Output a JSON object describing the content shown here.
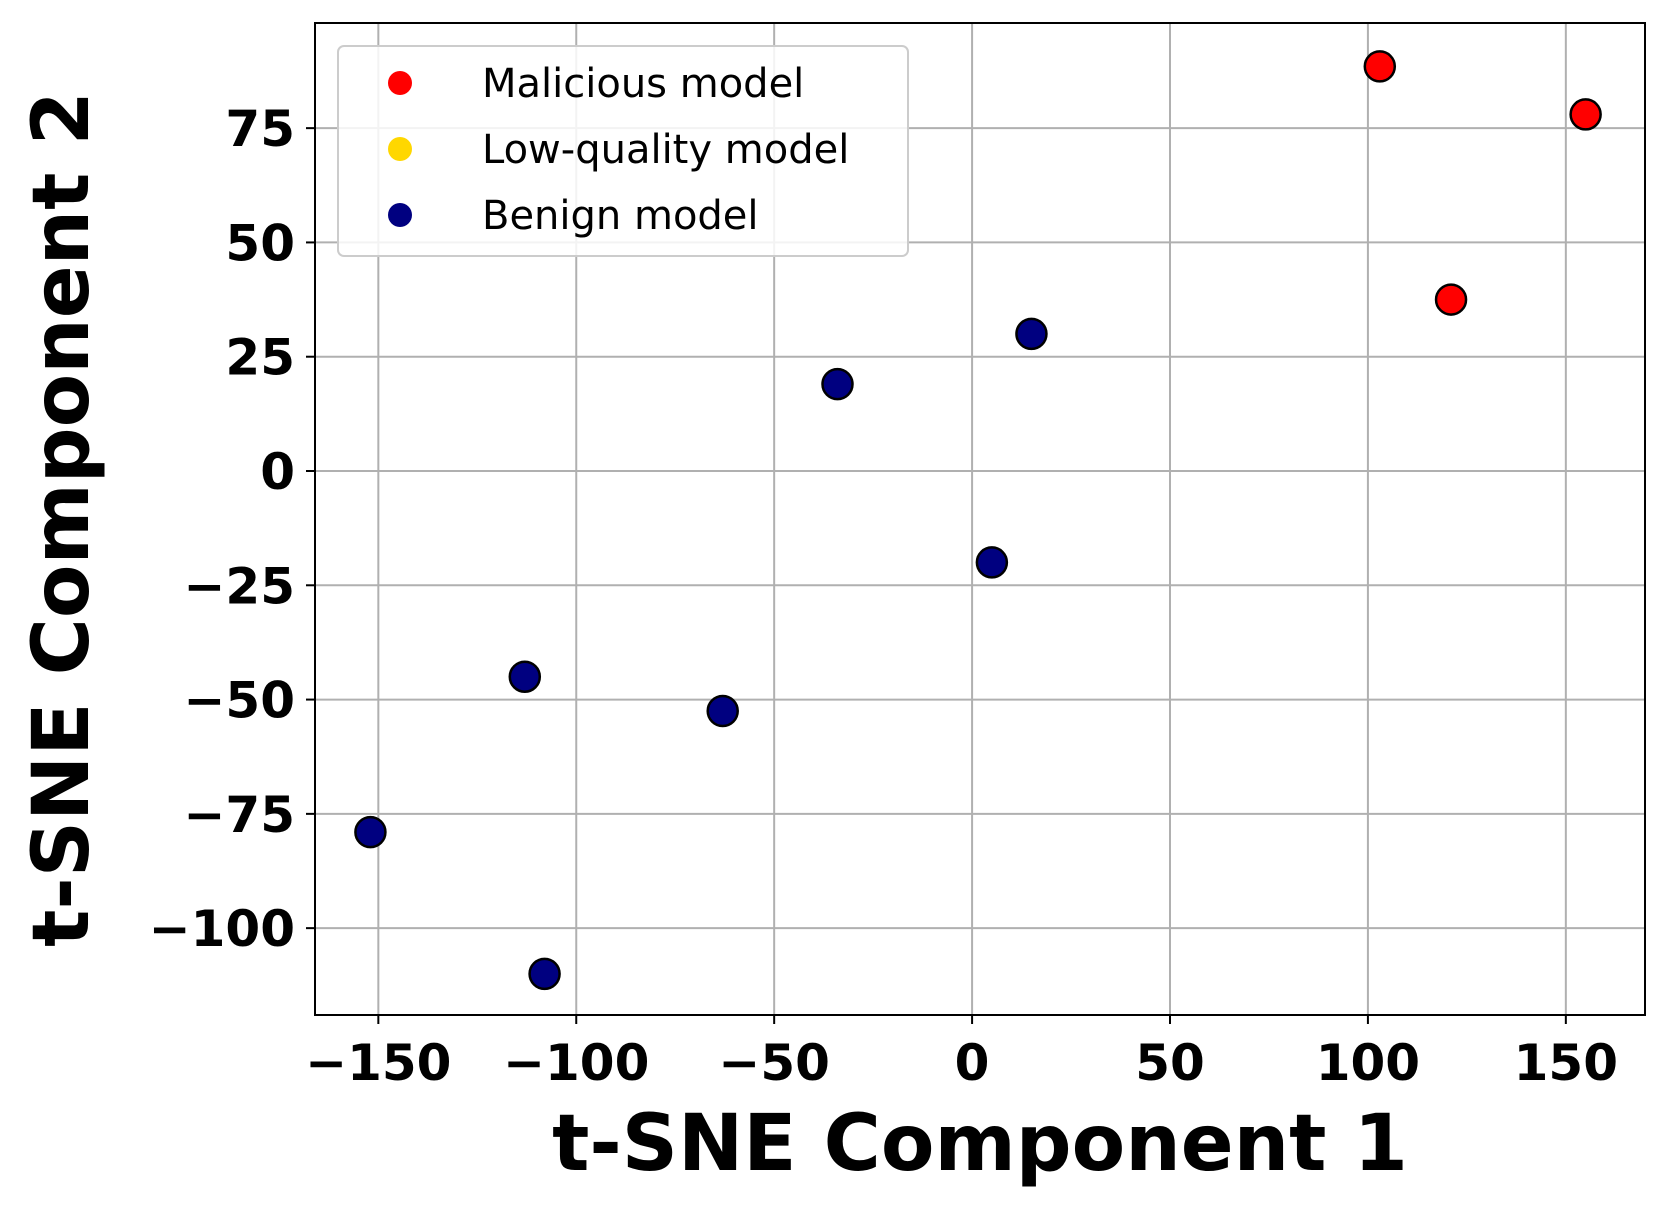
{
  "chart_data": {
    "type": "scatter",
    "title": "",
    "xlabel": "t-SNE Component 1",
    "ylabel": "t-SNE Component 2",
    "xlim": [
      -166,
      170
    ],
    "ylim": [
      -119,
      98
    ],
    "xticks": [
      -150,
      -100,
      -50,
      0,
      50,
      100,
      150
    ],
    "yticks": [
      -100,
      -75,
      -50,
      -25,
      0,
      25,
      50,
      75
    ],
    "xtick_labels": [
      "−150",
      "−100",
      "−50",
      "0",
      "50",
      "100",
      "150"
    ],
    "ytick_labels": [
      "−100",
      "−75",
      "−50",
      "−25",
      "0",
      "25",
      "50",
      "75"
    ],
    "grid": true,
    "legend_position": "top-left",
    "series": [
      {
        "name": "Malicious model",
        "color": "#ff0000",
        "points": [
          {
            "x": 103,
            "y": 88.5
          },
          {
            "x": 155,
            "y": 78
          },
          {
            "x": 121,
            "y": 37.5
          }
        ]
      },
      {
        "name": "Low-quality model",
        "color": "#ffd700",
        "points": []
      },
      {
        "name": "Benign model",
        "color": "#000080",
        "points": [
          {
            "x": 15,
            "y": 30
          },
          {
            "x": -34,
            "y": 19
          },
          {
            "x": 5,
            "y": -20
          },
          {
            "x": -113,
            "y": -45
          },
          {
            "x": -63,
            "y": -52.5
          },
          {
            "x": -152,
            "y": -79
          },
          {
            "x": -108,
            "y": -110
          }
        ]
      }
    ]
  }
}
